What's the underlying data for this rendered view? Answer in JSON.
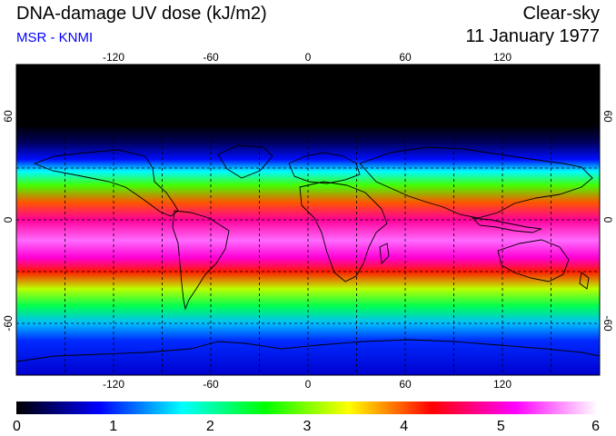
{
  "header": {
    "title": "DNA-damage UV dose (kJ/m2)",
    "credit": "MSR - KNMI",
    "condition": "Clear-sky",
    "date": "11 January 1977"
  },
  "map": {
    "projection": "equirectangular",
    "lon_range": [
      -180,
      180
    ],
    "lat_range": [
      -90,
      90
    ],
    "lon_ticks": [
      -120,
      -60,
      0,
      60,
      120
    ],
    "lat_ticks": [
      60,
      0,
      -60
    ],
    "lon_tick_labels": [
      "-120",
      "-60",
      "0",
      "60",
      "120"
    ],
    "lat_tick_labels": [
      "60",
      "0",
      "-60"
    ],
    "grid": "dashed",
    "grid_spacing_deg": 30,
    "dose_profile_by_latitude": [
      {
        "lat": 90,
        "dose": 0.0
      },
      {
        "lat": 55,
        "dose": 0.0
      },
      {
        "lat": 45,
        "dose": 0.3
      },
      {
        "lat": 35,
        "dose": 0.9
      },
      {
        "lat": 28,
        "dose": 1.7
      },
      {
        "lat": 20,
        "dose": 2.8
      },
      {
        "lat": 10,
        "dose": 4.0
      },
      {
        "lat": 0,
        "dose": 4.8
      },
      {
        "lat": -12,
        "dose": 5.5
      },
      {
        "lat": -22,
        "dose": 5.0
      },
      {
        "lat": -30,
        "dose": 4.2
      },
      {
        "lat": -40,
        "dose": 3.2
      },
      {
        "lat": -50,
        "dose": 2.3
      },
      {
        "lat": -60,
        "dose": 1.5
      },
      {
        "lat": -70,
        "dose": 1.0
      },
      {
        "lat": -90,
        "dose": 0.7
      }
    ]
  },
  "colorbar": {
    "min": 0,
    "max": 6,
    "tick_labels": [
      "0",
      "1",
      "2",
      "3",
      "4",
      "5",
      "6"
    ],
    "colors": [
      "#000000",
      "#0000ff",
      "#00ffff",
      "#00ff00",
      "#ffff00",
      "#ff0000",
      "#ff00ff",
      "#ffffff"
    ]
  }
}
